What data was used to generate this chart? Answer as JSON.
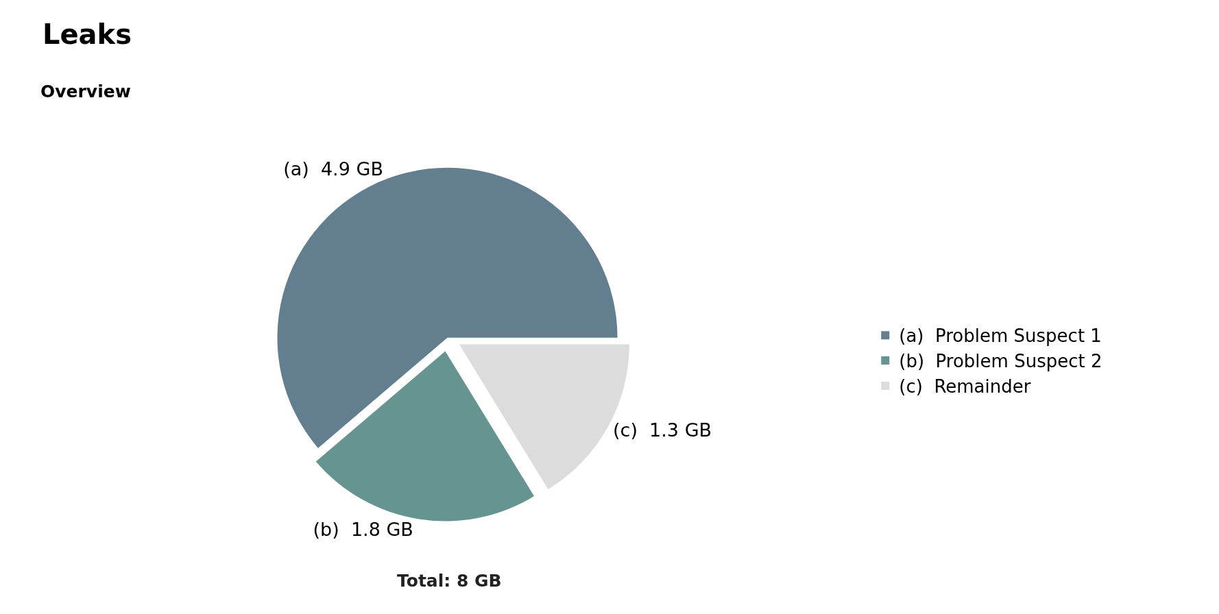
{
  "chart_data": {
    "type": "pie",
    "title": "Leaks",
    "subtitle": "Overview",
    "categories": [
      "(a)  Problem Suspect 1",
      "(b)  Problem Suspect 2",
      "(c)  Remainder"
    ],
    "values": [
      4.9,
      1.8,
      1.3
    ],
    "colors": [
      "#637f8f",
      "#669490",
      "#dcdcdc"
    ],
    "value_labels": [
      "(a)  4.9 GB",
      "(b)  1.8 GB",
      "(c)  1.3 GB"
    ],
    "annotations": [
      "Total: 8 GB"
    ],
    "legend": "right"
  }
}
